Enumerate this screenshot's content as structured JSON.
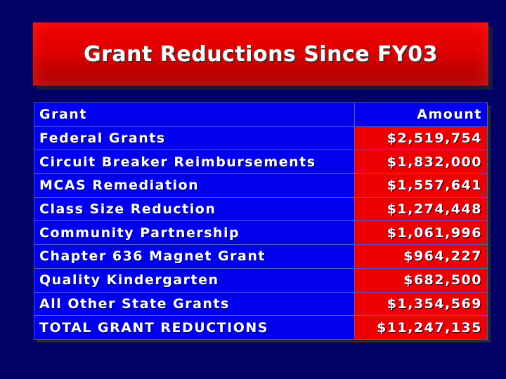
{
  "title": "Grant Reductions Since FY03",
  "table": {
    "header": {
      "grant": "Grant",
      "amount": "Amount"
    },
    "rows": [
      {
        "grant": "Federal Grants",
        "amount": "$2,519,754"
      },
      {
        "grant": "Circuit Breaker Reimbursements",
        "amount": "$1,832,000"
      },
      {
        "grant": "MCAS Remediation",
        "amount": "$1,557,641"
      },
      {
        "grant": "Class Size Reduction",
        "amount": "$1,274,448"
      },
      {
        "grant": "Community Partnership",
        "amount": "$1,061,996"
      },
      {
        "grant": "Chapter 636 Magnet Grant",
        "amount": "$964,227"
      },
      {
        "grant": "Quality Kindergarten",
        "amount": "$682,500"
      },
      {
        "grant": "All Other State Grants",
        "amount": "$1,354,569"
      },
      {
        "grant": "TOTAL GRANT REDUCTIONS",
        "amount": "$11,247,135"
      }
    ]
  },
  "colors": {
    "background": "#000066",
    "title_red": "#e00000",
    "cell_blue": "#0000ee",
    "cell_red": "#ee0000"
  }
}
